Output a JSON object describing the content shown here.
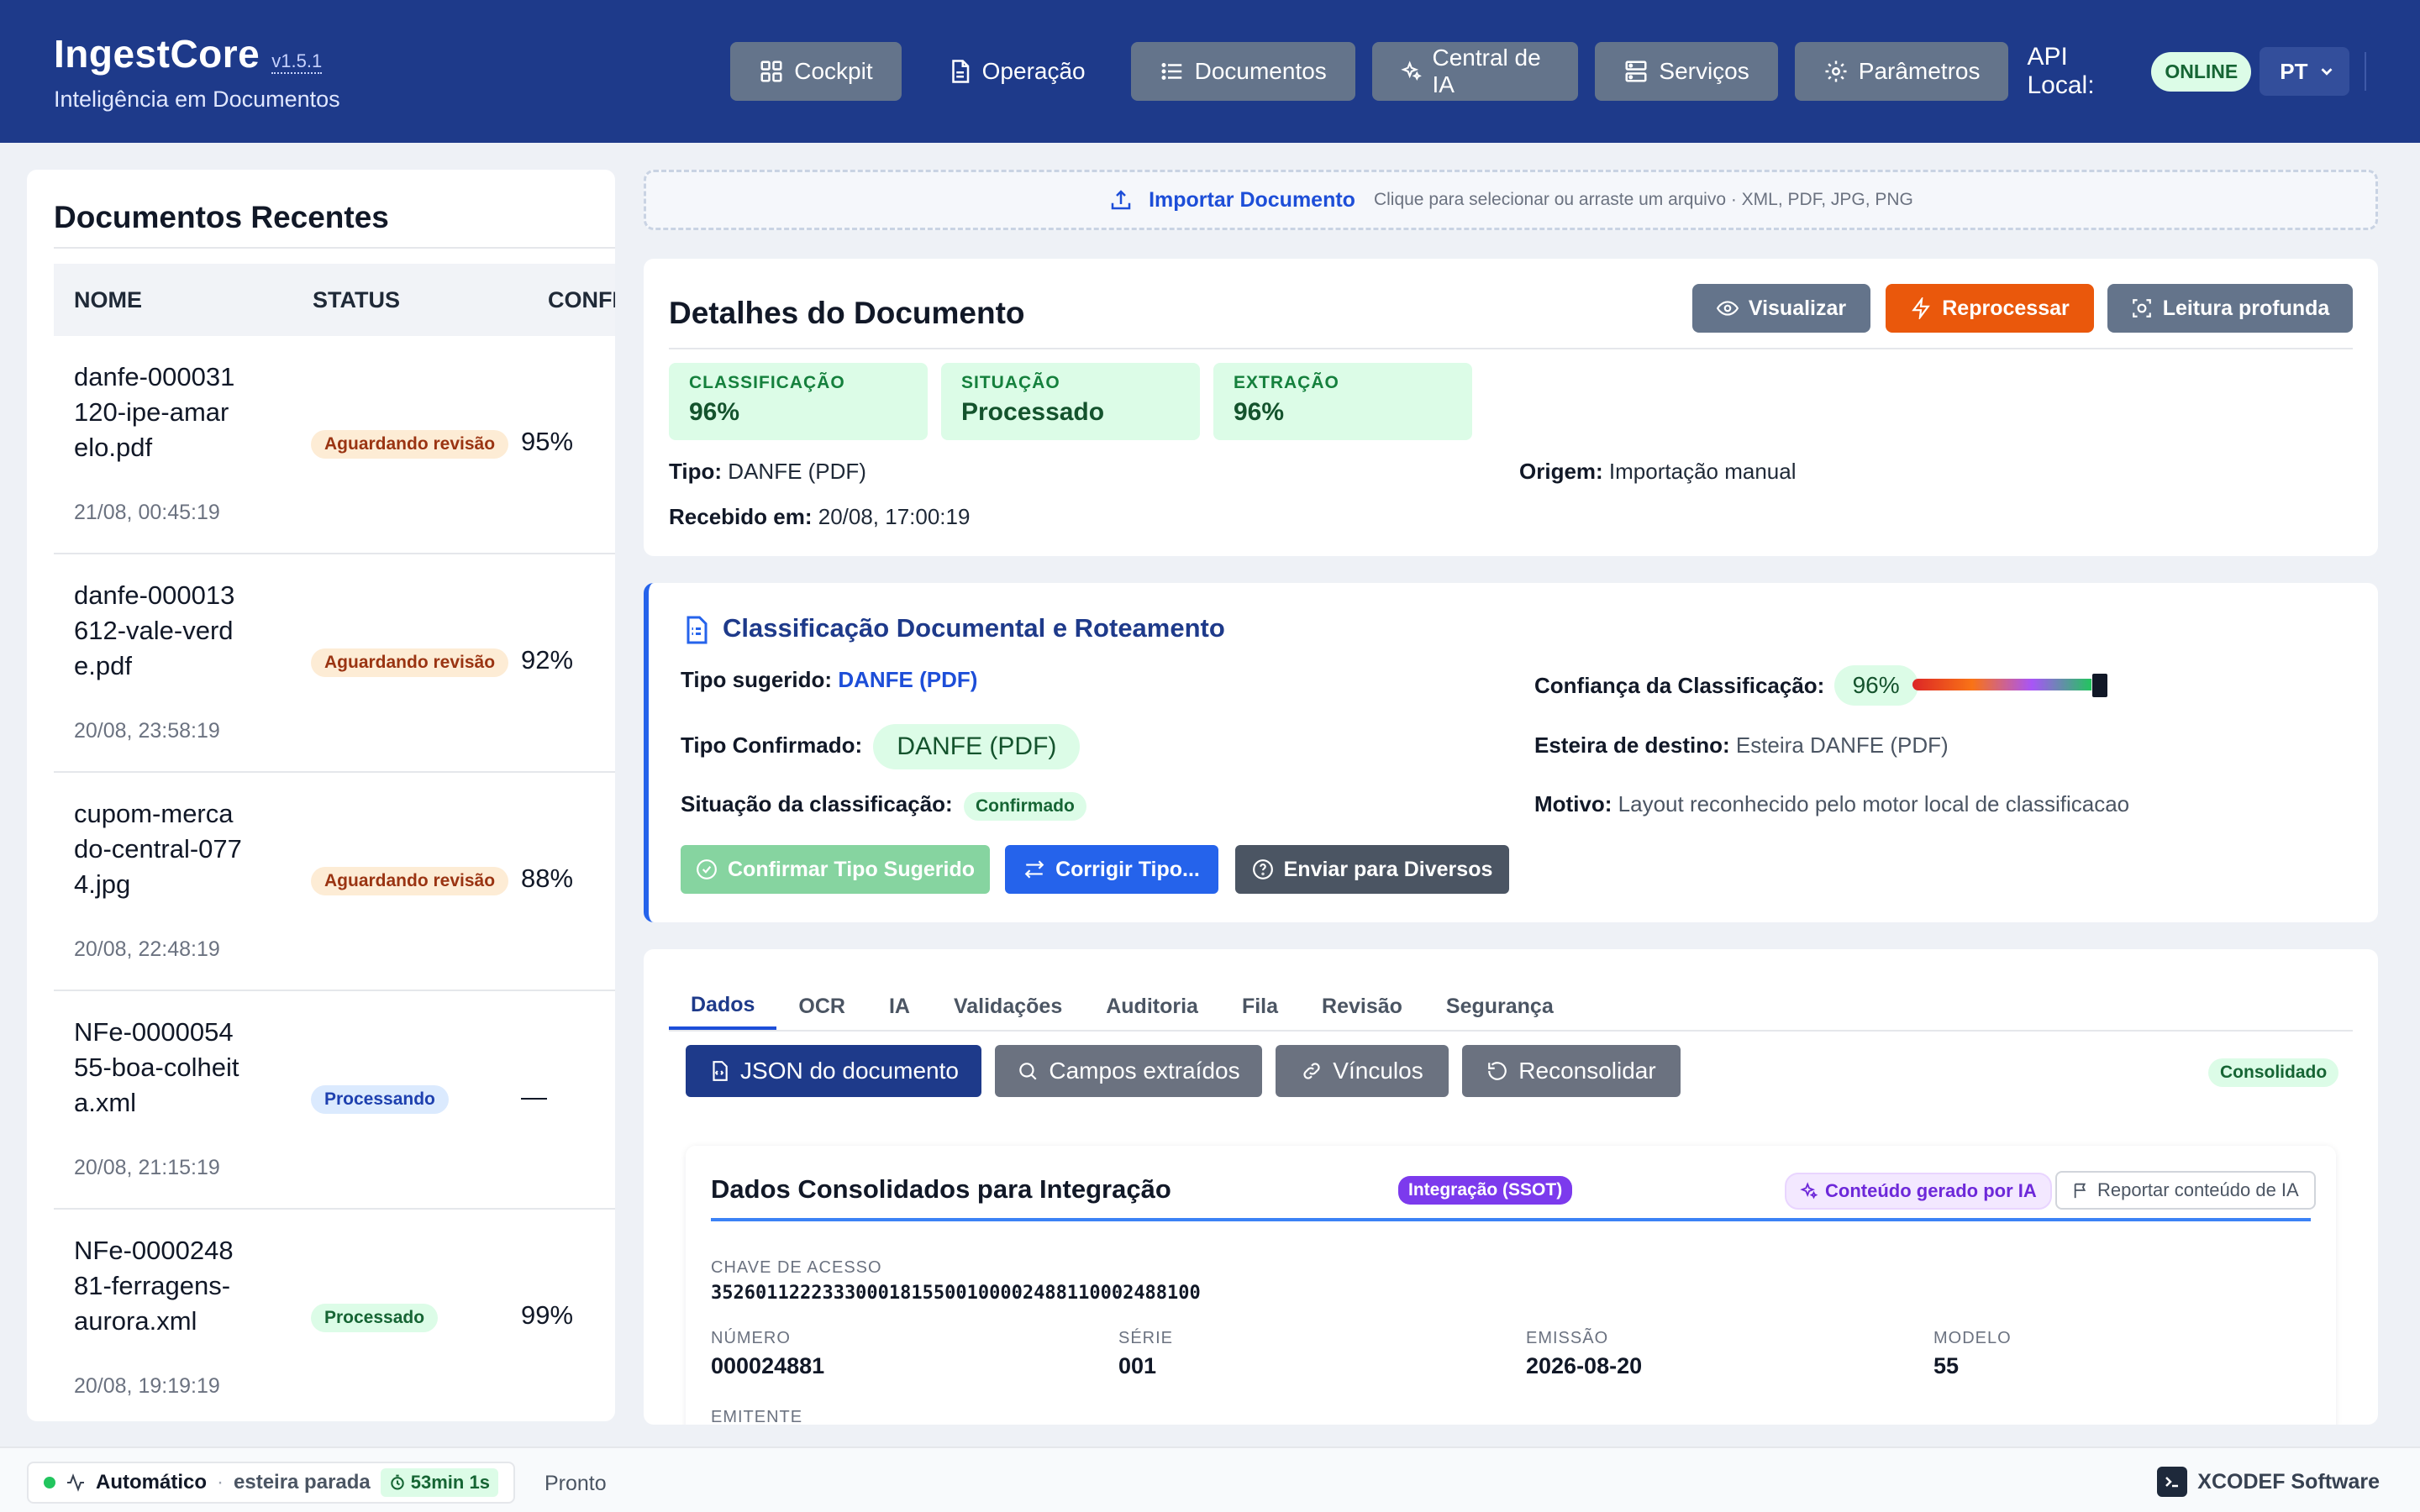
{
  "app": {
    "name": "IngestCore",
    "version": "v1.5.1",
    "subtitle": "Inteligência em Documentos"
  },
  "nav": {
    "items": [
      {
        "label": "Cockpit",
        "icon": "grid-icon"
      },
      {
        "label": "Operação",
        "icon": "document-icon"
      },
      {
        "label": "Documentos",
        "icon": "list-icon"
      },
      {
        "label": "Central de IA",
        "icon": "sparkles-icon"
      },
      {
        "label": "Serviços",
        "icon": "server-icon"
      },
      {
        "label": "Parâmetros",
        "icon": "gear-icon"
      }
    ],
    "api_label": "API Local:",
    "api_status": "ONLINE",
    "language": "PT"
  },
  "recent": {
    "title": "Documentos Recentes",
    "columns": [
      "NOME",
      "STATUS",
      "CONFI"
    ],
    "rows": [
      {
        "name": "danfe-000031120-ipe-amarelo.pdf",
        "date": "21/08, 00:45:19",
        "status": "Aguardando revisão",
        "confidence": "95%"
      },
      {
        "name": "danfe-000013612-vale-verde.pdf",
        "date": "20/08, 23:58:19",
        "status": "Aguardando revisão",
        "confidence": "92%"
      },
      {
        "name": "cupom-mercado-central-0774.jpg",
        "date": "20/08, 22:48:19",
        "status": "Aguardando revisão",
        "confidence": "88%"
      },
      {
        "name": "NFe-000005455-boa-colheita.xml",
        "date": "20/08, 21:15:19",
        "status": "Processando",
        "confidence": "—"
      },
      {
        "name": "NFe-000024881-ferragens-aurora.xml",
        "date": "20/08, 19:19:19",
        "status": "Processado",
        "confidence": "99%"
      }
    ]
  },
  "import": {
    "label": "Importar Documento",
    "hint": "Clique para selecionar ou arraste um arquivo · XML, PDF, JPG, PNG"
  },
  "details": {
    "title": "Detalhes do Documento",
    "actions": {
      "view": "Visualizar",
      "reprocess": "Reprocessar",
      "deep_read": "Leitura profunda"
    },
    "stats": [
      {
        "label": "CLASSIFICAÇÃO",
        "value": "96%"
      },
      {
        "label": "SITUAÇÃO",
        "value": "Processado"
      },
      {
        "label": "EXTRAÇÃO",
        "value": "96%"
      }
    ],
    "type_label": "Tipo:",
    "type_value": "DANFE (PDF)",
    "origin_label": "Origem:",
    "origin_value": "Importação manual",
    "received_label": "Recebido em:",
    "received_value": "20/08, 17:00:19"
  },
  "classification": {
    "title": "Classificação Documental e Roteamento",
    "suggested_label": "Tipo sugerido:",
    "suggested_value": "DANFE (PDF)",
    "confirmed_label": "Tipo Confirmado:",
    "confirmed_value": "DANFE (PDF)",
    "situation_label": "Situação da classificação:",
    "situation_value": "Confirmado",
    "confidence_label": "Confiança da Classificação:",
    "confidence_value": "96%",
    "confidence_fraction": 0.96,
    "destination_label": "Esteira de destino:",
    "destination_value": "Esteira DANFE (PDF)",
    "reason_label": "Motivo:",
    "reason_value": "Layout reconhecido pelo motor local de classificacao",
    "buttons": {
      "confirm": "Confirmar Tipo Sugerido",
      "correct": "Corrigir Tipo...",
      "send": "Enviar para Diversos"
    }
  },
  "data_panel": {
    "tabs": [
      "Dados",
      "OCR",
      "IA",
      "Validações",
      "Auditoria",
      "Fila",
      "Revisão",
      "Segurança"
    ],
    "subbuttons": {
      "json": "JSON do documento",
      "fields": "Campos extraídos",
      "links": "Vínculos",
      "reconsolidate": "Reconsolidar"
    },
    "status_badge": "Consolidado",
    "consolidated": {
      "title": "Dados Consolidados para Integração",
      "ssot_badge": "Integração (SSOT)",
      "ai_badge": "Conteúdo gerado por IA",
      "report_label": "Reportar conteúdo de IA",
      "access_key_label": "CHAVE DE ACESSO",
      "access_key": "35260112223330001815500100002488110002488100",
      "number_label": "NÚMERO",
      "number": "000024881",
      "series_label": "SÉRIE",
      "series": "001",
      "issue_label": "EMISSÃO",
      "issue": "2026-08-20",
      "model_label": "MODELO",
      "model": "55",
      "issuer_label": "EMITENTE"
    }
  },
  "footer": {
    "mode": "Automático",
    "belt_status": "esteira parada",
    "timer": "53min 1s",
    "status": "Pronto",
    "vendor": "XCODEF Software"
  },
  "colors": {
    "header": "#1e3a8a",
    "accent": "#1d4ed8",
    "orange": "#ea580c",
    "success": "#16a34a"
  }
}
